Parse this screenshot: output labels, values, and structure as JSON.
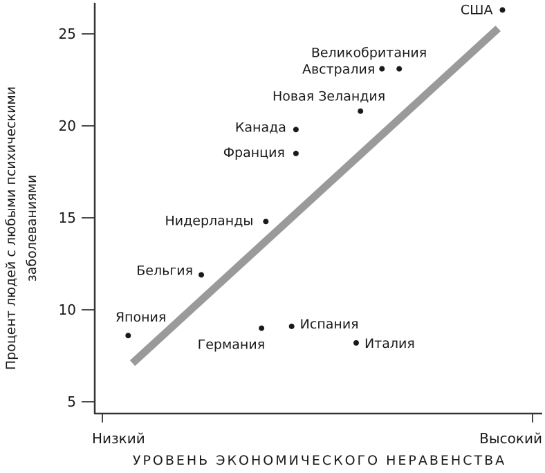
{
  "chart_data": {
    "type": "scatter",
    "title": "",
    "xlabel": "УРОВЕНЬ ЭКОНОМИЧЕСКОГО НЕРАВЕНСТВА",
    "ylabel_line1": "Процент людей с любыми психическими",
    "ylabel_line2": "заболеваниями",
    "ylabel": "Процент людей с любыми психическими заболеваниями",
    "x_tick_labels": [
      "Низкий",
      "Высокий"
    ],
    "y_ticks": [
      5,
      10,
      15,
      20,
      25
    ],
    "ylim": [
      4.4,
      27
    ],
    "xlim": [
      0,
      1
    ],
    "grid": false,
    "legend": null,
    "points": [
      {
        "label": "США",
        "x": 0.93,
        "y": 26.3
      },
      {
        "label": "Великобритания",
        "x": 0.69,
        "y": 23.1
      },
      {
        "label": "Австралия",
        "x": 0.65,
        "y": 23.1
      },
      {
        "label": "Новая Зеландия",
        "x": 0.6,
        "y": 20.8
      },
      {
        "label": "Канада",
        "x": 0.45,
        "y": 19.8
      },
      {
        "label": "Франция",
        "x": 0.45,
        "y": 18.5
      },
      {
        "label": "Нидерланды",
        "x": 0.38,
        "y": 14.8
      },
      {
        "label": "Бельгия",
        "x": 0.23,
        "y": 11.9
      },
      {
        "label": "Япония",
        "x": 0.06,
        "y": 8.6
      },
      {
        "label": "Германия",
        "x": 0.37,
        "y": 9.0
      },
      {
        "label": "Испания",
        "x": 0.44,
        "y": 9.1
      },
      {
        "label": "Италия",
        "x": 0.59,
        "y": 8.2
      }
    ],
    "trend_line": {
      "x": [
        0.07,
        0.92
      ],
      "y": [
        7.1,
        25.3
      ],
      "color": "#9a9a9a"
    }
  },
  "colors": {
    "axis": "#333333",
    "point": "#1a1a1a",
    "trend": "#9a9a9a"
  }
}
